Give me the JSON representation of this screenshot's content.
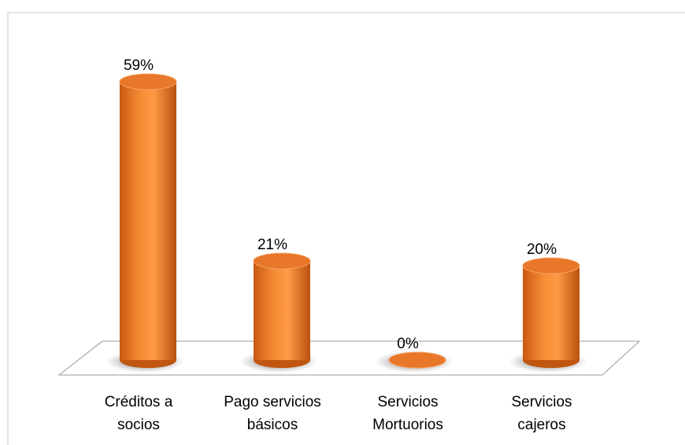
{
  "chart_data": {
    "type": "bar3d",
    "categories": [
      "Créditos a socios",
      "Pago servicios básicos",
      "Servicios Mortuorios",
      "Servicios cajeros"
    ],
    "values": [
      59,
      21,
      0,
      20
    ],
    "value_labels": [
      "59%",
      "21%",
      "0%",
      "20%"
    ],
    "color": "#f0862e"
  }
}
